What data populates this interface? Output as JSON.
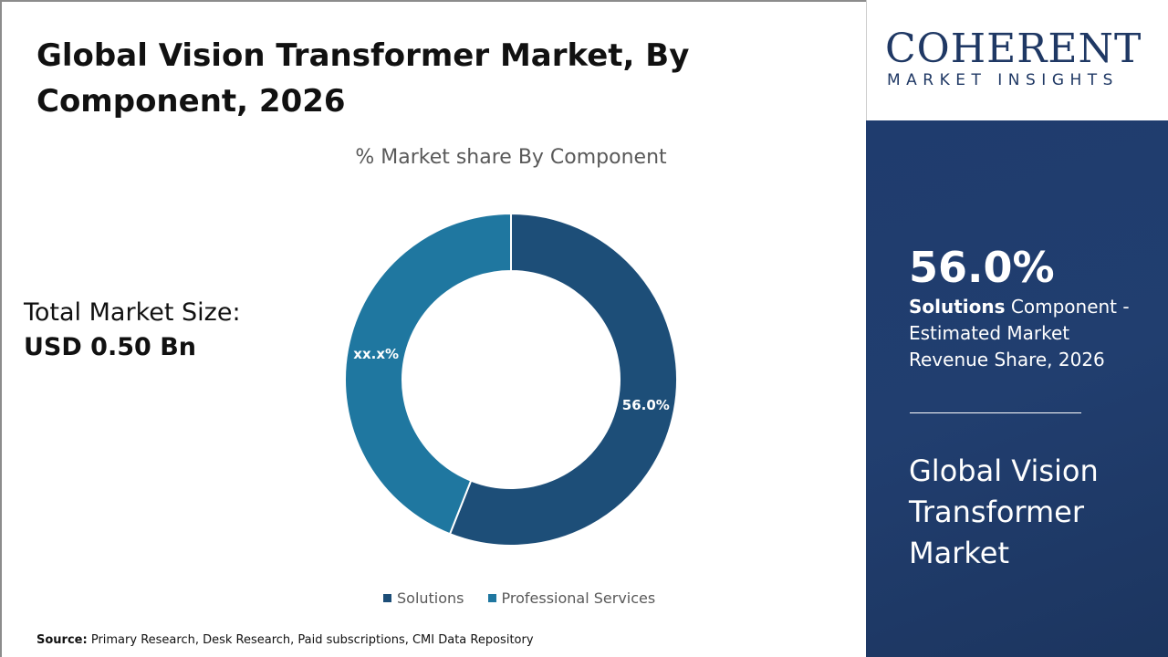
{
  "title": "Global Vision Transformer Market, By Component, 2026",
  "total": {
    "label": "Total Market Size:",
    "value": "USD 0.50 Bn"
  },
  "source": {
    "label": "Source:",
    "text": "Primary Research, Desk Research, Paid subscriptions, CMI Data Repository"
  },
  "logo": {
    "name": "COHERENT",
    "tagline": "MARKET INSIGHTS"
  },
  "panel": {
    "percent": "56.0%",
    "segment": "Solutions",
    "desc": "Component - Estimated Market Revenue Share, 2026",
    "market": "Global Vision Transformer Market"
  },
  "chart_data": {
    "type": "pie",
    "style": "donut",
    "title": "% Market share By Component",
    "categories": [
      "Solutions",
      "Professional Services"
    ],
    "values": [
      56.0,
      44.0
    ],
    "data_labels": [
      "56.0%",
      "xx.x%"
    ],
    "colors": [
      "#1d4e78",
      "#1f77a0"
    ],
    "legend": "bottom"
  }
}
